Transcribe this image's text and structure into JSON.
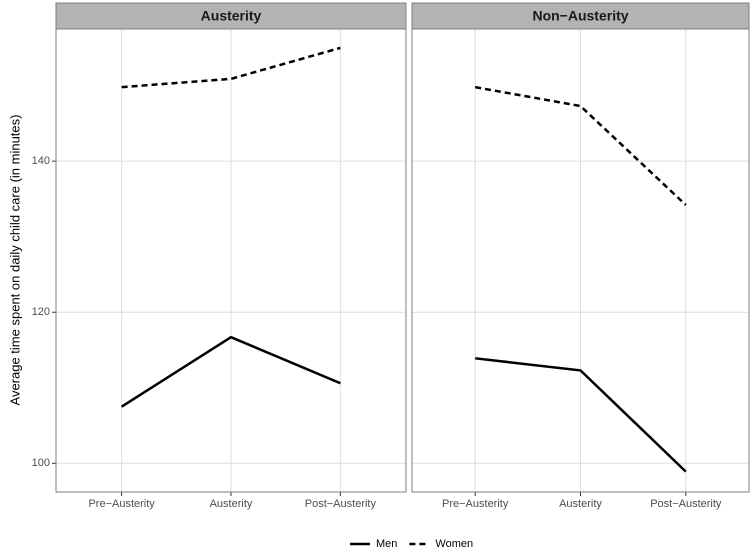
{
  "chart_data": [
    {
      "type": "line",
      "title": "Austerity",
      "y_label": "Average time spent on daily child care (in minutes)",
      "categories": [
        "Pre−Austerity",
        "Austerity",
        "Post−Austerity"
      ],
      "series": [
        {
          "name": "Men",
          "color": "#000000",
          "dash": "solid",
          "values": [
            107.5,
            116.7,
            110.6
          ]
        },
        {
          "name": "Women",
          "color": "#000000",
          "dash": "dashed",
          "values": [
            149.8,
            150.9,
            155.0
          ]
        }
      ],
      "ylim": [
        96.2,
        157.5
      ],
      "yticks": [
        100,
        120,
        140
      ],
      "grid": true,
      "legend": "bottom"
    },
    {
      "type": "line",
      "title": "Non−Austerity",
      "categories": [
        "Pre−Austerity",
        "Austerity",
        "Post−Austerity"
      ],
      "series": [
        {
          "name": "Men",
          "color": "#000000",
          "dash": "solid",
          "values": [
            113.9,
            112.3,
            98.9
          ]
        },
        {
          "name": "Women",
          "color": "#000000",
          "dash": "dashed",
          "values": [
            149.8,
            147.3,
            134.2
          ]
        }
      ],
      "ylim": [
        96.2,
        157.5
      ],
      "yticks": [
        100,
        120,
        140
      ],
      "grid": true
    }
  ]
}
